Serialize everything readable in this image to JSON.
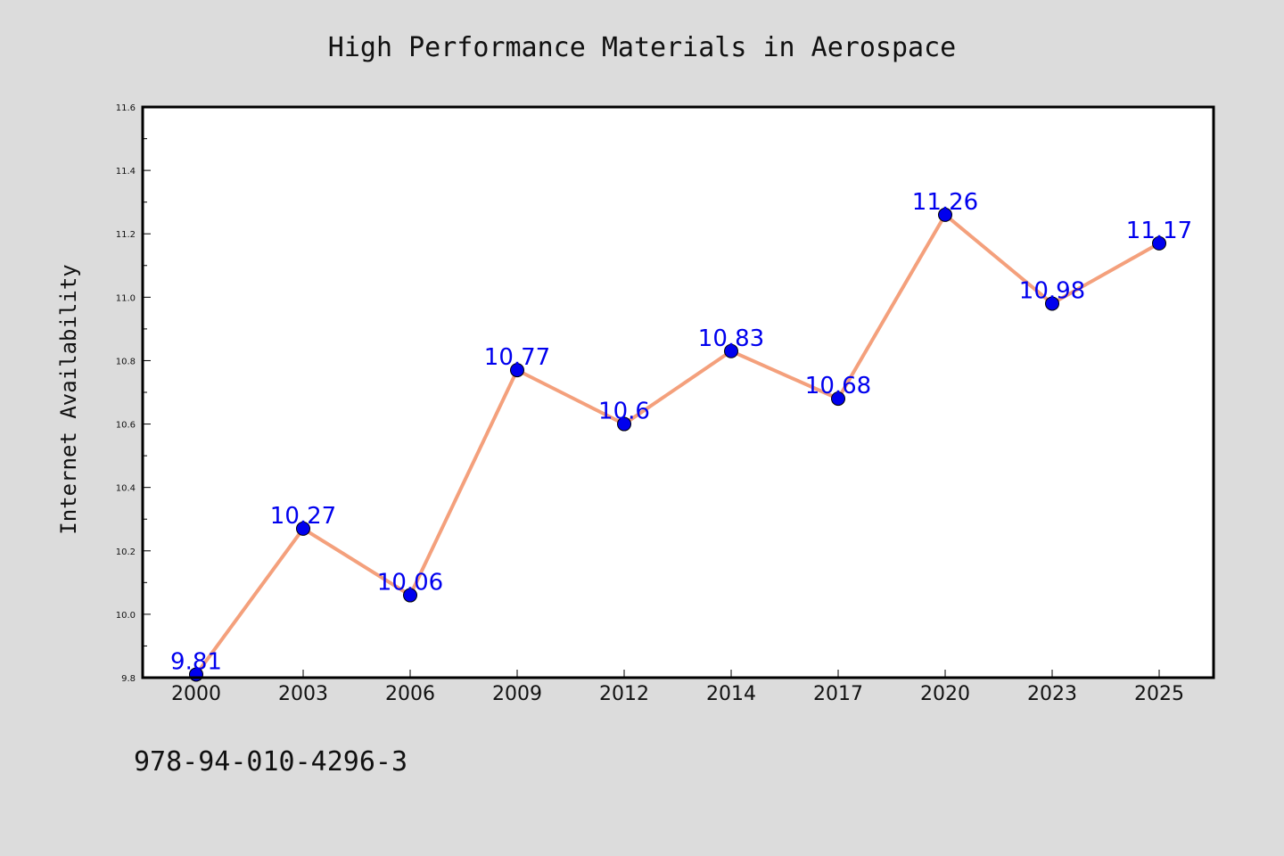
{
  "chart_data": {
    "type": "line",
    "title": "High Performance Materials in Aerospace",
    "xlabel": "",
    "ylabel": "Internet Availability",
    "categories": [
      "2000",
      "2003",
      "2006",
      "2009",
      "2012",
      "2014",
      "2017",
      "2020",
      "2023",
      "2025"
    ],
    "series": [
      {
        "values": [
          9.81,
          10.27,
          10.06,
          10.77,
          10.6,
          10.83,
          10.68,
          11.26,
          10.98,
          11.17
        ]
      }
    ],
    "data_labels": [
      "9.81",
      "10.27",
      "10.06",
      "10.77",
      "10.6",
      "10.83",
      "10.68",
      "11.26",
      "10.98",
      "11.17"
    ],
    "ylim": [
      9.8,
      11.6
    ],
    "yticks": [
      "9.8",
      "10.0",
      "10.2",
      "10.4",
      "10.6",
      "10.8",
      "11.0",
      "11.2",
      "11.4",
      "11.6"
    ],
    "grid": false,
    "legend": "none",
    "colors": {
      "line": "#f4a07c",
      "marker": "#0000ee",
      "marker_edge": "#000000",
      "label": "#0000ee",
      "background": "#dcdcdc",
      "plot_area": "#ffffff"
    }
  },
  "footer": {
    "code": "978-94-010-4296-3"
  }
}
